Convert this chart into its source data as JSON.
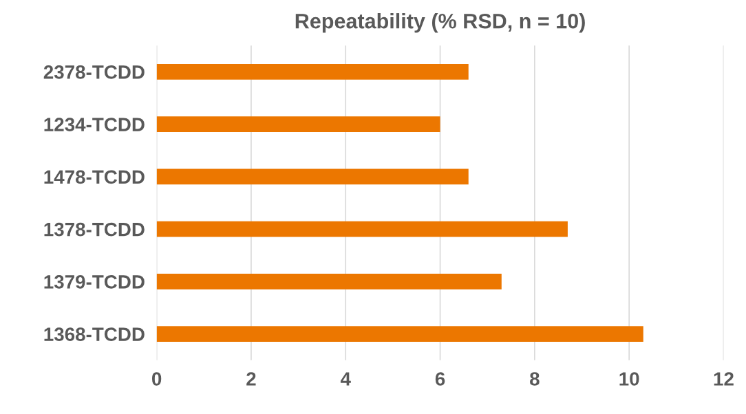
{
  "chart_data": {
    "type": "bar",
    "orientation": "horizontal",
    "title": "Repeatability (% RSD, n = 10)",
    "categories": [
      "2378-TCDD",
      "1234-TCDD",
      "1478-TCDD",
      "1378-TCDD",
      "1379-TCDD",
      "1368-TCDD"
    ],
    "values": [
      6.6,
      6.0,
      6.6,
      8.7,
      7.3,
      10.3
    ],
    "color": "#ec7700",
    "xlim": [
      0,
      12
    ],
    "xticks": [
      0,
      2,
      4,
      6,
      8,
      10,
      12
    ],
    "grid": "x",
    "legend": false
  }
}
